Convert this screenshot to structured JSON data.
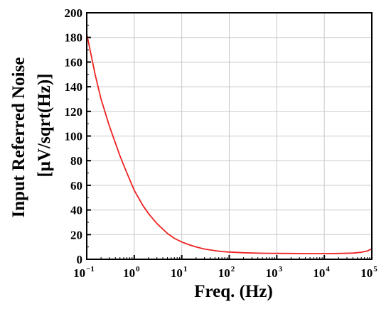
{
  "chart_data": {
    "type": "line",
    "title": "",
    "xlabel": "Freq. (Hz)",
    "ylabel_line1": "Input Referred Noise",
    "ylabel_line2": "[μV/sqrt(Hz)]",
    "xscale": "log",
    "xlim": [
      0.1,
      100000
    ],
    "ylim": [
      0,
      200
    ],
    "grid": true,
    "x_ticks": [
      {
        "base": "10",
        "exp": "−1",
        "value": 0.1
      },
      {
        "base": "10",
        "exp": "0",
        "value": 1
      },
      {
        "base": "10",
        "exp": "1",
        "value": 10
      },
      {
        "base": "10",
        "exp": "2",
        "value": 100
      },
      {
        "base": "10",
        "exp": "3",
        "value": 1000
      },
      {
        "base": "10",
        "exp": "4",
        "value": 10000
      },
      {
        "base": "10",
        "exp": "5",
        "value": 100000
      }
    ],
    "y_ticks": [
      "0",
      "20",
      "40",
      "60",
      "80",
      "100",
      "120",
      "140",
      "160",
      "180",
      "200"
    ],
    "series": [
      {
        "color": "#ee2222",
        "x": [
          0.1,
          0.15,
          0.2,
          0.3,
          0.5,
          0.7,
          1,
          1.5,
          2,
          3,
          5,
          7,
          10,
          15,
          20,
          30,
          50,
          70,
          100,
          200,
          500,
          1000,
          2000,
          5000,
          10000,
          20000,
          40000,
          60000,
          80000,
          100000
        ],
        "y": [
          183,
          150,
          130,
          108,
          84,
          70,
          56,
          44,
          37,
          29,
          21,
          17,
          14,
          11.5,
          10,
          8.3,
          7,
          6.3,
          5.9,
          5.3,
          4.9,
          4.8,
          4.7,
          4.6,
          4.6,
          4.7,
          5.0,
          5.7,
          6.7,
          8.5
        ]
      }
    ]
  }
}
